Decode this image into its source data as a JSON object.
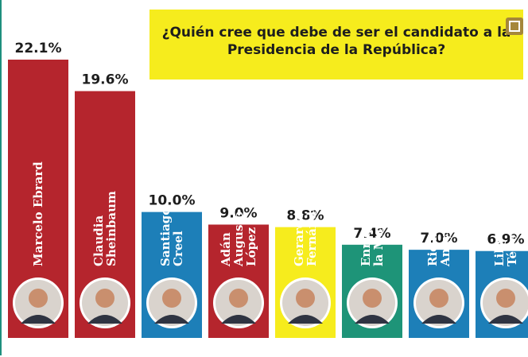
{
  "header": {
    "title_line1": "¿Quién cree que debe de ser el candidato a la",
    "title_line2": "Presidencia de la República?"
  },
  "controls": {
    "expand_icon": "expand-icon"
  },
  "chart_data": {
    "type": "bar",
    "title": "¿Quién cree que debe de ser el candidato a la Presidencia de la República?",
    "categories": [
      "Marcelo Ebrard",
      "Claudia Sheinbaum",
      "Santiago Creel",
      "Adán Augusto López",
      "Gerardo Fernández",
      "Enrique de la Madrid",
      "Ricardo Anaya",
      "Lilly Téllez"
    ],
    "name_lines": [
      [
        "Marcelo Ebrard"
      ],
      [
        "Claudia",
        "Sheinbaum"
      ],
      [
        "Santiago",
        "Creel"
      ],
      [
        "Adán",
        "Augusto",
        "López"
      ],
      [
        "Gerardo",
        "Fernández"
      ],
      [
        "Enrique de",
        "la Madrid"
      ],
      [
        "Ricardo",
        "Anaya"
      ],
      [
        "Lilly",
        "Téllez"
      ]
    ],
    "values": [
      22.1,
      19.6,
      10.0,
      9.0,
      8.8,
      7.4,
      7.0,
      6.9
    ],
    "labels": [
      "22.1%",
      "19.6%",
      "10.0%",
      "9.0%",
      "8.8%",
      "7.4%",
      "7.0%",
      "6.9%"
    ],
    "colors": [
      "#b5252d",
      "#b5252d",
      "#1d7fb8",
      "#b5252d",
      "#f6ec1d",
      "#1e9478",
      "#1d7fb8",
      "#1d7fb8"
    ],
    "ylim": [
      0,
      22.1
    ],
    "grid": false,
    "legend": "none"
  }
}
